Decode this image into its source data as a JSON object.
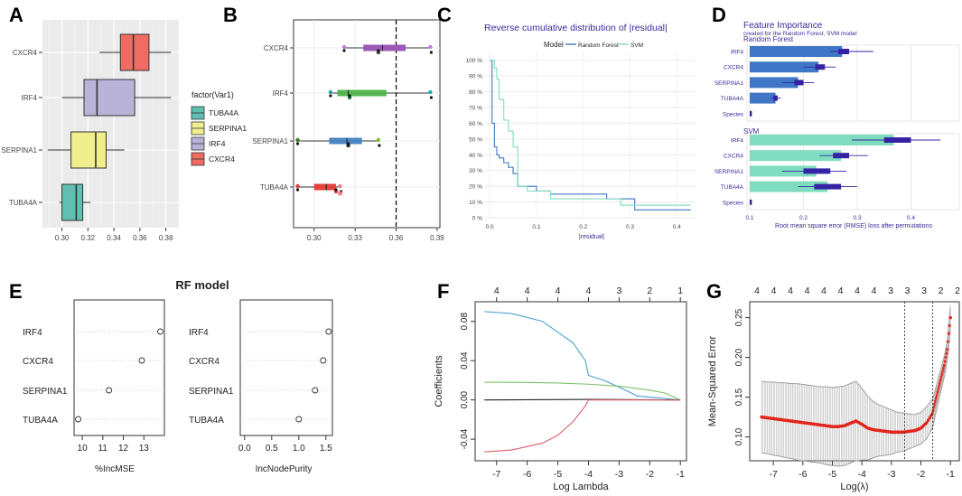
{
  "panels": {
    "A": {
      "label": "A"
    },
    "B": {
      "label": "B"
    },
    "C": {
      "label": "C"
    },
    "D": {
      "label": "D"
    },
    "E": {
      "label": "E"
    },
    "F": {
      "label": "F"
    },
    "G": {
      "label": "G"
    }
  },
  "colors": {
    "tuba4a": "#5fbfb0",
    "serpina1": "#f1ee8e",
    "irf4": "#b9b3d8",
    "cxcr4": "#f06b62",
    "rf": "#3f77c6",
    "svm": "#7fdcbf",
    "bar_dark": "#3523a6",
    "red": "#e3251b"
  },
  "chart_data": [
    {
      "id": "A",
      "type": "box",
      "orientation": "horizontal",
      "categories": [
        "TUBA4A",
        "SERPINA1",
        "IRF4",
        "CXCR4"
      ],
      "series": [
        {
          "name": "TUBA4A",
          "min": 0.298,
          "q1": 0.3,
          "median": 0.311,
          "q3": 0.316,
          "max": 0.322
        },
        {
          "name": "SERPINA1",
          "min": 0.289,
          "q1": 0.307,
          "median": 0.326,
          "q3": 0.334,
          "max": 0.348
        },
        {
          "name": "IRF4",
          "min": 0.3,
          "q1": 0.317,
          "median": 0.327,
          "q3": 0.356,
          "max": 0.384
        },
        {
          "name": "CXCR4",
          "min": 0.329,
          "q1": 0.345,
          "median": 0.355,
          "q3": 0.367,
          "max": 0.384
        }
      ],
      "xlim": [
        0.285,
        0.39
      ],
      "xticks": [
        "0.30",
        "0.32",
        "0.34",
        "0.36",
        "0.38"
      ],
      "legend_title": "factor(Var1)",
      "legend": [
        "TUBA4A",
        "SERPINA1",
        "IRF4",
        "CXCR4"
      ]
    },
    {
      "id": "B",
      "type": "box",
      "orientation": "horizontal",
      "categories": [
        "TUBA4A",
        "SERPINA1",
        "IRF4",
        "CXCR4"
      ],
      "series": [
        {
          "name": "TUBA4A",
          "min": 0.288,
          "q1": 0.3,
          "median": 0.309,
          "q3": 0.316,
          "max": 0.319,
          "points": [
            0.288,
            0.316,
            0.319
          ]
        },
        {
          "name": "SERPINA1",
          "min": 0.288,
          "q1": 0.311,
          "median": 0.324,
          "q3": 0.335,
          "max": 0.347,
          "points": [
            0.288,
            0.325,
            0.347
          ]
        },
        {
          "name": "IRF4",
          "min": 0.312,
          "q1": 0.317,
          "median": 0.325,
          "q3": 0.353,
          "max": 0.385,
          "points": [
            0.312,
            0.326,
            0.385
          ]
        },
        {
          "name": "CXCR4",
          "min": 0.321,
          "q1": 0.336,
          "median": 0.35,
          "q3": 0.367,
          "max": 0.385,
          "points": [
            0.322,
            0.347,
            0.385
          ]
        }
      ],
      "xlim": [
        0.285,
        0.392
      ],
      "xticks": [
        "0.30",
        "0.33",
        "0.36",
        "0.39"
      ],
      "vline": 0.36
    },
    {
      "id": "C",
      "type": "line",
      "title": "Reverse cumulative distribution of |residual|",
      "legend_title": "Model",
      "xlabel": "|residual|",
      "xticks": [
        "0.0",
        "0.1",
        "0.2",
        "0.3",
        "0.4"
      ],
      "yticks": [
        "0 %",
        "10 %",
        "20 %",
        "30 %",
        "40 %",
        "50 %",
        "60 %",
        "70 %",
        "80 %",
        "90 %",
        "100 %"
      ],
      "xlim": [
        -0.01,
        0.44
      ],
      "ylim": [
        0,
        100
      ],
      "series": [
        {
          "name": "Random Forest",
          "x": [
            0,
            0.005,
            0.01,
            0.015,
            0.02,
            0.03,
            0.04,
            0.05,
            0.06,
            0.1,
            0.13,
            0.25,
            0.31,
            0.43
          ],
          "y": [
            100,
            60,
            45,
            40,
            38,
            35,
            32,
            28,
            20,
            17,
            15,
            12,
            5,
            5
          ]
        },
        {
          "name": "SVM",
          "x": [
            0,
            0.01,
            0.015,
            0.02,
            0.03,
            0.04,
            0.05,
            0.06,
            0.08,
            0.13,
            0.28,
            0.43
          ],
          "y": [
            100,
            95,
            88,
            75,
            62,
            55,
            45,
            20,
            17,
            12,
            8,
            8
          ]
        }
      ]
    },
    {
      "id": "D",
      "type": "bar",
      "title": "Feature Importance",
      "subtitle": "created for the Random Forest, SVM model",
      "groups": [
        {
          "name": "Random Forest",
          "categories": [
            "IRF4",
            "CXCR4",
            "SERPINA1",
            "TUBA4A",
            "Species"
          ],
          "values": [
            0.272,
            0.228,
            0.19,
            0.148,
            0.102
          ],
          "box_lo": [
            0.265,
            0.222,
            0.183,
            0.144,
            0.1
          ],
          "box_hi": [
            0.285,
            0.24,
            0.2,
            0.152,
            0.104
          ],
          "whisk_lo": [
            0.25,
            0.2,
            0.16,
            0.14,
            0.1
          ],
          "whisk_hi": [
            0.33,
            0.26,
            0.22,
            0.158,
            0.104
          ]
        },
        {
          "name": "SVM",
          "categories": [
            "IRF4",
            "CXCR4",
            "SERPINA1",
            "TUBA4A",
            "Species"
          ],
          "values": [
            0.368,
            0.27,
            0.224,
            0.245,
            0.102
          ],
          "box_lo": [
            0.35,
            0.255,
            0.2,
            0.22,
            0.1
          ],
          "box_hi": [
            0.4,
            0.285,
            0.25,
            0.27,
            0.104
          ],
          "whisk_lo": [
            0.29,
            0.23,
            0.16,
            0.19,
            0.1
          ],
          "whisk_hi": [
            0.455,
            0.32,
            0.28,
            0.3,
            0.104
          ]
        }
      ],
      "xlim": [
        0.095,
        0.49
      ],
      "xticks": [
        "0.1",
        "0.2",
        "0.3",
        "0.4"
      ],
      "xlabel": "Root mean square error (RMSE) loss after permutations"
    },
    {
      "id": "E",
      "type": "scatter",
      "title": "RF model",
      "categories": [
        "IRF4",
        "CXCR4",
        "SERPINA1",
        "TUBA4A"
      ],
      "plots": [
        {
          "xlabel": "%IncMSE",
          "values": [
            13.8,
            12.9,
            11.3,
            9.8
          ],
          "xlim": [
            9.6,
            14.0
          ],
          "xticks": [
            "10",
            "11",
            "12",
            "13"
          ]
        },
        {
          "xlabel": "IncNodePurity",
          "values": [
            1.55,
            1.45,
            1.3,
            1.0
          ],
          "xlim": [
            -0.08,
            1.62
          ],
          "xticks": [
            "0.0",
            "0.5",
            "1.0",
            "1.5"
          ]
        }
      ]
    },
    {
      "id": "F",
      "type": "line",
      "xlabel": "Log Lambda",
      "ylabel": "Coefficients",
      "xticks": [
        "-7",
        "-6",
        "-5",
        "-4",
        "-3",
        "-2",
        "-1"
      ],
      "yticks": [
        "-0.04",
        "0.00",
        "0.04",
        "0.08"
      ],
      "top_ticks": [
        "4",
        "4",
        "4",
        "4",
        "3",
        "2",
        "1"
      ],
      "xlim": [
        -7.7,
        -0.8
      ],
      "ylim": [
        -0.062,
        0.1
      ],
      "series": [
        {
          "name": "blue",
          "color": "#4a9fd0",
          "x": [
            -7.4,
            -6.5,
            -5.5,
            -4.5,
            -4.1,
            -4.0,
            -3.5,
            -3.0,
            -2.4,
            -1.0
          ],
          "y": [
            0.09,
            0.088,
            0.08,
            0.058,
            0.04,
            0.025,
            0.02,
            0.013,
            0.004,
            0.0
          ]
        },
        {
          "name": "green",
          "color": "#7cc36a",
          "x": [
            -7.4,
            -6.0,
            -5.0,
            -4.0,
            -3.0,
            -2.0,
            -1.5,
            -1.0
          ],
          "y": [
            0.018,
            0.0178,
            0.0172,
            0.016,
            0.014,
            0.01,
            0.007,
            0.0
          ]
        },
        {
          "name": "black",
          "color": "#222222",
          "x": [
            -7.4,
            -4.0,
            -1.0
          ],
          "y": [
            0.0,
            0.0005,
            0.0
          ]
        },
        {
          "name": "red",
          "color": "#d9606a",
          "x": [
            -7.4,
            -6.5,
            -5.5,
            -5.0,
            -4.5,
            -4.1,
            -4.0,
            -3.0,
            -1.0
          ],
          "y": [
            -0.053,
            -0.051,
            -0.044,
            -0.036,
            -0.022,
            -0.006,
            0.0,
            0.0,
            0.0
          ]
        }
      ]
    },
    {
      "id": "G",
      "type": "scatter",
      "xlabel": "Log(λ)",
      "ylabel": "Mean-Squared Error",
      "xticks": [
        "-7",
        "-6",
        "-5",
        "-4",
        "-3",
        "-2",
        "-1"
      ],
      "yticks": [
        "0.10",
        "0.15",
        "0.20",
        "0.25"
      ],
      "top_ticks": [
        "4",
        "4",
        "4",
        "4",
        "4",
        "4",
        "4",
        "4",
        "3",
        "3",
        "3",
        "2",
        "2"
      ],
      "xlim": [
        -7.8,
        -0.7
      ],
      "ylim": [
        0.07,
        0.27
      ],
      "vlines": [
        -2.55,
        -1.6
      ],
      "x": [
        -7.4,
        -7.2,
        -7.0,
        -6.8,
        -6.6,
        -6.4,
        -6.2,
        -6.0,
        -5.8,
        -5.6,
        -5.4,
        -5.2,
        -5.0,
        -4.8,
        -4.6,
        -4.4,
        -4.2,
        -4.0,
        -3.8,
        -3.6,
        -3.4,
        -3.2,
        -3.0,
        -2.8,
        -2.6,
        -2.4,
        -2.2,
        -2.0,
        -1.8,
        -1.6,
        -1.5,
        -1.4,
        -1.3,
        -1.2,
        -1.1,
        -1.0
      ],
      "y": [
        0.125,
        0.124,
        0.123,
        0.122,
        0.121,
        0.12,
        0.119,
        0.118,
        0.117,
        0.116,
        0.115,
        0.114,
        0.113,
        0.113,
        0.114,
        0.117,
        0.12,
        0.116,
        0.111,
        0.109,
        0.108,
        0.107,
        0.106,
        0.106,
        0.106,
        0.107,
        0.108,
        0.111,
        0.118,
        0.13,
        0.145,
        0.16,
        0.175,
        0.19,
        0.21,
        0.25
      ],
      "err": [
        0.045,
        0.045,
        0.046,
        0.046,
        0.047,
        0.047,
        0.048,
        0.048,
        0.048,
        0.048,
        0.048,
        0.049,
        0.049,
        0.05,
        0.05,
        0.05,
        0.05,
        0.045,
        0.04,
        0.035,
        0.032,
        0.03,
        0.028,
        0.025,
        0.024,
        0.022,
        0.02,
        0.02,
        0.02,
        0.018,
        0.016,
        0.015,
        0.014,
        0.013,
        0.012,
        0.015
      ]
    }
  ]
}
